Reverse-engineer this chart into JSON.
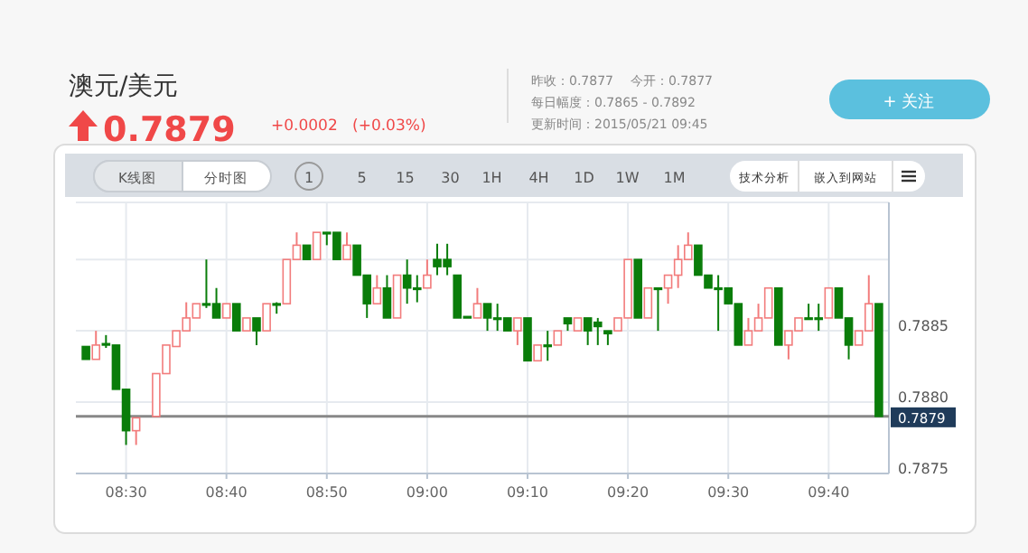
{
  "chart_data": {
    "type": "candlestick",
    "title": "澳元/美元",
    "subtitle": "0.7879",
    "annotations": [
      "+0.0002",
      "(+0.03%)",
      "昨收：0.7877",
      "今开：0.7877",
      "每日幅度：0.7865 - 0.7892",
      "更新时间：2015/05/21 09:45",
      "+ 关注",
      "K线图",
      "分时图",
      "1 5 15 30 1H 4H 1D 1W 1M",
      "技术分析",
      "嵌入到网站"
    ],
    "x": [
      "2015-05-21T08:26",
      "2015-05-21T08:27",
      "2015-05-21T08:28",
      "2015-05-21T08:29",
      "2015-05-21T08:30",
      "2015-05-21T08:31",
      "2015-05-21T08:33",
      "2015-05-21T08:34",
      "2015-05-21T08:35",
      "2015-05-21T08:36",
      "2015-05-21T08:37",
      "2015-05-21T08:38",
      "2015-05-21T08:39",
      "2015-05-21T08:40",
      "2015-05-21T08:41",
      "2015-05-21T08:42",
      "2015-05-21T08:43",
      "2015-05-21T08:44",
      "2015-05-21T08:45",
      "2015-05-21T08:46",
      "2015-05-21T08:47",
      "2015-05-21T08:48",
      "2015-05-21T08:49",
      "2015-05-21T08:50",
      "2015-05-21T08:51",
      "2015-05-21T08:52",
      "2015-05-21T08:53",
      "2015-05-21T08:54",
      "2015-05-21T08:55",
      "2015-05-21T08:56",
      "2015-05-21T08:57",
      "2015-05-21T08:58",
      "2015-05-21T08:59",
      "2015-05-21T09:00",
      "2015-05-21T09:01",
      "2015-05-21T09:02",
      "2015-05-21T09:03",
      "2015-05-21T09:04",
      "2015-05-21T09:05",
      "2015-05-21T09:06",
      "2015-05-21T09:07",
      "2015-05-21T09:08",
      "2015-05-21T09:09",
      "2015-05-21T09:10",
      "2015-05-21T09:11",
      "2015-05-21T09:12",
      "2015-05-21T09:13",
      "2015-05-21T09:14",
      "2015-05-21T09:15",
      "2015-05-21T09:16",
      "2015-05-21T09:17",
      "2015-05-21T09:18",
      "2015-05-21T09:19",
      "2015-05-21T09:20",
      "2015-05-21T09:21",
      "2015-05-21T09:22",
      "2015-05-21T09:23",
      "2015-05-21T09:24",
      "2015-05-21T09:25",
      "2015-05-21T09:26",
      "2015-05-21T09:27",
      "2015-05-21T09:28",
      "2015-05-21T09:29",
      "2015-05-21T09:30",
      "2015-05-21T09:31",
      "2015-05-21T09:32",
      "2015-05-21T09:33",
      "2015-05-21T09:34",
      "2015-05-21T09:35",
      "2015-05-21T09:36",
      "2015-05-21T09:37",
      "2015-05-21T09:38",
      "2015-05-21T09:39",
      "2015-05-21T09:40",
      "2015-05-21T09:41",
      "2015-05-21T09:42",
      "2015-05-21T09:43",
      "2015-05-21T09:44",
      "2015-05-21T09:45"
    ],
    "ohlc": [
      [
        0.78839,
        0.78839,
        0.7883,
        0.7883
      ],
      [
        0.7883,
        0.7885,
        0.7883,
        0.7884
      ],
      [
        0.78841,
        0.78847,
        0.78838,
        0.7884
      ],
      [
        0.7884,
        0.7884,
        0.78809,
        0.78809
      ],
      [
        0.78809,
        0.78809,
        0.7877,
        0.7878
      ],
      [
        0.7878,
        0.78789,
        0.7877,
        0.78789
      ],
      [
        0.7879,
        0.7882,
        0.7879,
        0.7882
      ],
      [
        0.7882,
        0.7884,
        0.7882,
        0.7884
      ],
      [
        0.78839,
        0.7885,
        0.78839,
        0.7885
      ],
      [
        0.7885,
        0.7887,
        0.7885,
        0.78859
      ],
      [
        0.78859,
        0.78869,
        0.78859,
        0.78869
      ],
      [
        0.78869,
        0.789,
        0.78866,
        0.78868
      ],
      [
        0.78869,
        0.7888,
        0.78859,
        0.78859
      ],
      [
        0.78859,
        0.78869,
        0.78859,
        0.78869
      ],
      [
        0.78869,
        0.78869,
        0.7885,
        0.7885
      ],
      [
        0.7885,
        0.78859,
        0.7885,
        0.78859
      ],
      [
        0.78859,
        0.78859,
        0.7884,
        0.7885
      ],
      [
        0.7885,
        0.78869,
        0.7885,
        0.78869
      ],
      [
        0.78869,
        0.7887,
        0.78862,
        0.78868
      ],
      [
        0.78869,
        0.789,
        0.78869,
        0.789
      ],
      [
        0.789,
        0.78919,
        0.789,
        0.7891
      ],
      [
        0.7891,
        0.7891,
        0.789,
        0.789
      ],
      [
        0.789,
        0.78919,
        0.789,
        0.78919
      ],
      [
        0.78919,
        0.78919,
        0.7891,
        0.78918
      ],
      [
        0.78919,
        0.78919,
        0.789,
        0.789
      ],
      [
        0.789,
        0.78919,
        0.789,
        0.7891
      ],
      [
        0.7891,
        0.7891,
        0.78889,
        0.78889
      ],
      [
        0.78889,
        0.78889,
        0.78859,
        0.78869
      ],
      [
        0.78869,
        0.78889,
        0.78869,
        0.7888
      ],
      [
        0.7888,
        0.78889,
        0.78859,
        0.78859
      ],
      [
        0.78859,
        0.78889,
        0.78859,
        0.78889
      ],
      [
        0.78889,
        0.789,
        0.78869,
        0.7888
      ],
      [
        0.7888,
        0.78889,
        0.7887,
        0.78879
      ],
      [
        0.7888,
        0.789,
        0.7888,
        0.78889
      ],
      [
        0.789,
        0.78911,
        0.78889,
        0.78895
      ],
      [
        0.789,
        0.78911,
        0.78889,
        0.78895
      ],
      [
        0.78889,
        0.78889,
        0.78859,
        0.78859
      ],
      [
        0.7886,
        0.7886,
        0.78859,
        0.78859
      ],
      [
        0.78859,
        0.7888,
        0.78859,
        0.78869
      ],
      [
        0.78869,
        0.78869,
        0.7885,
        0.78859
      ],
      [
        0.78859,
        0.78869,
        0.7885,
        0.78858
      ],
      [
        0.78859,
        0.78859,
        0.7885,
        0.7885
      ],
      [
        0.7885,
        0.78859,
        0.7884,
        0.78859
      ],
      [
        0.78859,
        0.78859,
        0.78829,
        0.78829
      ],
      [
        0.78829,
        0.7884,
        0.78829,
        0.7884
      ],
      [
        0.7884,
        0.7885,
        0.78829,
        0.78839
      ],
      [
        0.7884,
        0.7885,
        0.7884,
        0.7885
      ],
      [
        0.78859,
        0.78859,
        0.7885,
        0.78855
      ],
      [
        0.7885,
        0.78859,
        0.7885,
        0.78859
      ],
      [
        0.78859,
        0.78859,
        0.7884,
        0.7885
      ],
      [
        0.78856,
        0.78859,
        0.7884,
        0.78853
      ],
      [
        0.7885,
        0.7885,
        0.7884,
        0.78848
      ],
      [
        0.7885,
        0.78859,
        0.7885,
        0.78859
      ],
      [
        0.78859,
        0.789,
        0.78859,
        0.789
      ],
      [
        0.789,
        0.789,
        0.78859,
        0.78859
      ],
      [
        0.78859,
        0.7888,
        0.78859,
        0.7888
      ],
      [
        0.7888,
        0.7888,
        0.7885,
        0.78879
      ],
      [
        0.7888,
        0.78889,
        0.78869,
        0.78889
      ],
      [
        0.78889,
        0.7891,
        0.7888,
        0.789
      ],
      [
        0.789,
        0.78919,
        0.789,
        0.7891
      ],
      [
        0.7891,
        0.7891,
        0.78889,
        0.78889
      ],
      [
        0.78889,
        0.78889,
        0.7888,
        0.7888
      ],
      [
        0.7888,
        0.78889,
        0.7885,
        0.78879
      ],
      [
        0.7888,
        0.7888,
        0.78869,
        0.78869
      ],
      [
        0.78869,
        0.78869,
        0.7884,
        0.7884
      ],
      [
        0.7884,
        0.78859,
        0.7884,
        0.7885
      ],
      [
        0.7885,
        0.78869,
        0.7885,
        0.78859
      ],
      [
        0.78859,
        0.7888,
        0.78859,
        0.7888
      ],
      [
        0.7888,
        0.7888,
        0.7884,
        0.7884
      ],
      [
        0.7884,
        0.7885,
        0.7883,
        0.7885
      ],
      [
        0.7885,
        0.78859,
        0.7885,
        0.78859
      ],
      [
        0.78859,
        0.78869,
        0.78858,
        0.78858
      ],
      [
        0.78859,
        0.78869,
        0.7885,
        0.78858
      ],
      [
        0.78859,
        0.7888,
        0.78859,
        0.7888
      ],
      [
        0.7888,
        0.7888,
        0.78859,
        0.78859
      ],
      [
        0.78859,
        0.78859,
        0.7883,
        0.7884
      ],
      [
        0.7884,
        0.7885,
        0.7884,
        0.7885
      ],
      [
        0.7885,
        0.78889,
        0.7885,
        0.78869
      ],
      [
        0.78869,
        0.78869,
        0.7879,
        0.7879
      ]
    ],
    "colors": [
      "#0a7d0a",
      "#f27c7c",
      "#0a7d0a",
      "#0a7d0a",
      "#0a7d0a",
      "#f27c7c",
      "#f27c7c",
      "#f27c7c",
      "#f27c7c",
      "#f27c7c",
      "#f27c7c",
      "#0a7d0a",
      "#0a7d0a",
      "#f27c7c",
      "#0a7d0a",
      "#f27c7c",
      "#0a7d0a",
      "#f27c7c",
      "#0a7d0a",
      "#f27c7c",
      "#f27c7c",
      "#0a7d0a",
      "#f27c7c",
      "#0a7d0a",
      "#0a7d0a",
      "#f27c7c",
      "#0a7d0a",
      "#0a7d0a",
      "#f27c7c",
      "#0a7d0a",
      "#f27c7c",
      "#0a7d0a",
      "#0a7d0a",
      "#f27c7c",
      "#0a7d0a",
      "#0a7d0a",
      "#0a7d0a",
      "#0a7d0a",
      "#f27c7c",
      "#0a7d0a",
      "#0a7d0a",
      "#0a7d0a",
      "#f27c7c",
      "#0a7d0a",
      "#f27c7c",
      "#0a7d0a",
      "#f27c7c",
      "#0a7d0a",
      "#f27c7c",
      "#0a7d0a",
      "#0a7d0a",
      "#0a7d0a",
      "#f27c7c",
      "#f27c7c",
      "#0a7d0a",
      "#f27c7c",
      "#0a7d0a",
      "#f27c7c",
      "#f27c7c",
      "#f27c7c",
      "#0a7d0a",
      "#0a7d0a",
      "#0a7d0a",
      "#0a7d0a",
      "#0a7d0a",
      "#f27c7c",
      "#f27c7c",
      "#f27c7c",
      "#0a7d0a",
      "#f27c7c",
      "#f27c7c",
      "#0a7d0a",
      "#0a7d0a",
      "#f27c7c",
      "#0a7d0a",
      "#0a7d0a",
      "#f27c7c",
      "#f27c7c",
      "#0a7d0a"
    ],
    "xlim": [
      "2015-05-21T08:25",
      "2015-05-21T09:46"
    ],
    "xticks": [
      {
        "value": "2015-05-21T08:30",
        "label": "08:30"
      },
      {
        "value": "2015-05-21T08:40",
        "label": "08:40"
      },
      {
        "value": "2015-05-21T08:50",
        "label": "08:50"
      },
      {
        "value": "2015-05-21T09:00",
        "label": "09:00"
      },
      {
        "value": "2015-05-21T09:10",
        "label": "09:10"
      },
      {
        "value": "2015-05-21T09:20",
        "label": "09:20"
      },
      {
        "value": "2015-05-21T09:30",
        "label": "09:30"
      },
      {
        "value": "2015-05-21T09:40",
        "label": "09:40"
      }
    ],
    "ylim": [
      0.7875,
      0.7894
    ],
    "yticks": [
      {
        "value": 0.7875,
        "label": "0.7875"
      },
      {
        "value": 0.788,
        "label": "0.7880"
      },
      {
        "value": 0.7885,
        "label": "0.7885"
      },
      {
        "value": 0.789,
        "label": null
      }
    ],
    "ref_lines": [
      {
        "axis": "y",
        "value": 0.7879,
        "label": "0.7879",
        "color": "#888888"
      }
    ],
    "grid": true
  }
}
